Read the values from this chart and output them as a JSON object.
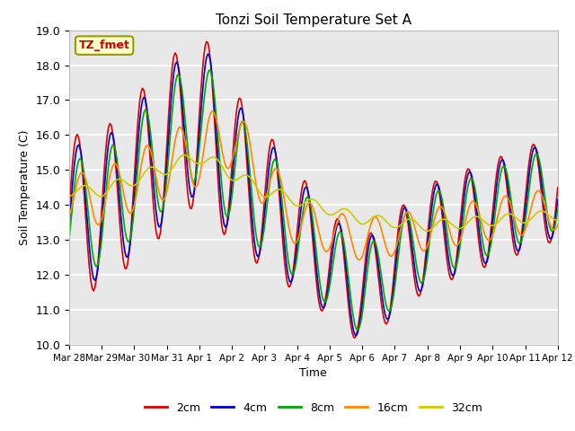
{
  "title": "Tonzi Soil Temperature Set A",
  "xlabel": "Time",
  "ylabel": "Soil Temperature (C)",
  "ylim": [
    10.0,
    19.0
  ],
  "yticks": [
    10.0,
    11.0,
    12.0,
    13.0,
    14.0,
    15.0,
    16.0,
    17.0,
    18.0,
    19.0
  ],
  "xtick_labels": [
    "Mar 28",
    "Mar 29",
    "Mar 30",
    "Mar 31",
    "Apr 1",
    "Apr 2",
    "Apr 3",
    "Apr 4",
    "Apr 5",
    "Apr 6",
    "Apr 7",
    "Apr 8",
    "Apr 9",
    "Apr 10",
    "Apr 11",
    "Apr 12"
  ],
  "series": {
    "2cm": {
      "color": "#dd0000",
      "lw": 1.2
    },
    "4cm": {
      "color": "#0000cc",
      "lw": 1.2
    },
    "8cm": {
      "color": "#00aa00",
      "lw": 1.2
    },
    "16cm": {
      "color": "#ff8800",
      "lw": 1.2
    },
    "32cm": {
      "color": "#cccc00",
      "lw": 1.2
    }
  },
  "legend_entries": [
    "2cm",
    "4cm",
    "8cm",
    "16cm",
    "32cm"
  ],
  "annotation_text": "TZ_fmet",
  "annotation_color": "#cc0000",
  "annotation_bg": "#ffffcc",
  "annotation_border": "#999900",
  "plot_bg_color": "#e8e8e8",
  "fig_bg_color": "#ffffff",
  "grid_color": "#ffffff",
  "days": 15,
  "n_points": 360
}
